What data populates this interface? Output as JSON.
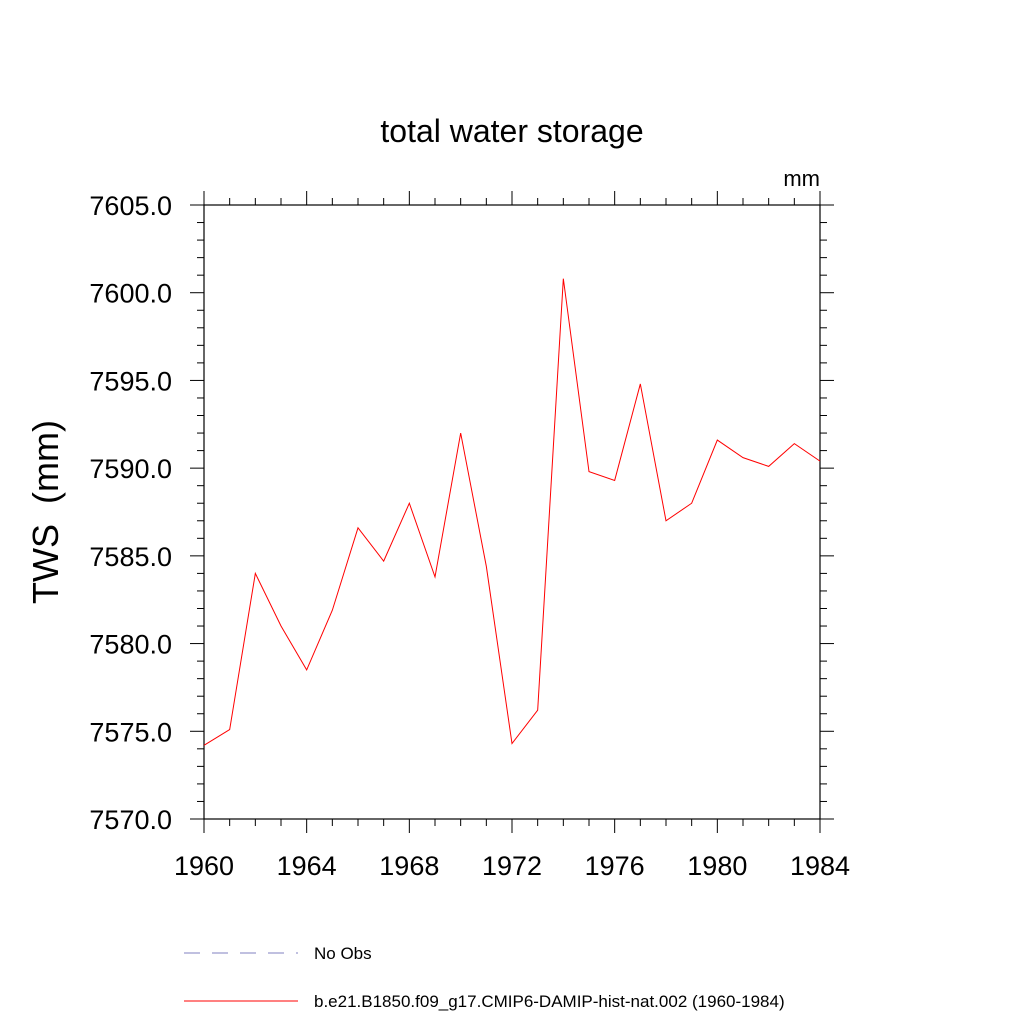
{
  "chart_data": {
    "type": "line",
    "title": "total water storage",
    "units_label": "mm",
    "ylabel": "TWS  (mm)",
    "xlabel": "",
    "xlim": [
      1960,
      1984
    ],
    "ylim": [
      7570.0,
      7605.0
    ],
    "x_ticks": [
      1960,
      1964,
      1968,
      1972,
      1976,
      1980,
      1984
    ],
    "y_ticks": [
      7570.0,
      7575.0,
      7580.0,
      7585.0,
      7590.0,
      7595.0,
      7600.0,
      7605.0
    ],
    "x_tick_labels": [
      "1960",
      "1964",
      "1968",
      "1972",
      "1976",
      "1980",
      "1984"
    ],
    "y_tick_labels": [
      "7570.0",
      "7575.0",
      "7580.0",
      "7585.0",
      "7590.0",
      "7595.0",
      "7600.0",
      "7605.0"
    ],
    "x": [
      1960,
      1961,
      1962,
      1963,
      1964,
      1965,
      1966,
      1967,
      1968,
      1969,
      1970,
      1971,
      1972,
      1973,
      1974,
      1975,
      1976,
      1977,
      1978,
      1979,
      1980,
      1981,
      1982,
      1983,
      1984
    ],
    "series": [
      {
        "name": "b.e21.B1850.f09_g17.CMIP6-DAMIP-hist-nat.002 (1960-1984)",
        "color": "#ff0000",
        "values": [
          7574.2,
          7575.1,
          7584.0,
          7581.0,
          7578.5,
          7581.9,
          7586.6,
          7584.7,
          7588.0,
          7583.8,
          7592.0,
          7584.4,
          7574.3,
          7576.2,
          7600.8,
          7589.8,
          7589.3,
          7594.8,
          7587.0,
          7588.0,
          7591.6,
          7590.6,
          7590.1,
          7591.4,
          7590.4
        ]
      }
    ],
    "legend": {
      "placement": "bottom",
      "entries": [
        {
          "label": "No Obs",
          "color": "#8080c0",
          "style": "dashed"
        },
        {
          "label": "b.e21.B1850.f09_g17.CMIP6-DAMIP-hist-nat.002 (1960-1984)",
          "color": "#ff0000",
          "style": "solid"
        }
      ]
    }
  }
}
